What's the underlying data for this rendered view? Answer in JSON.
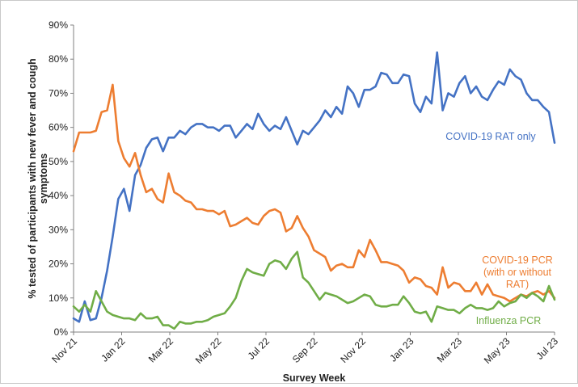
{
  "chart_data": {
    "type": "line",
    "title": "",
    "xlabel": "Survey Week",
    "ylabel": "% tested of participants with new fever and cough symptoms",
    "ylim": [
      0,
      90
    ],
    "yticks": [
      "0%",
      "10%",
      "20%",
      "30%",
      "40%",
      "50%",
      "60%",
      "70%",
      "80%",
      "90%"
    ],
    "xticks": [
      "Nov 21",
      "Jan 22",
      "Mar 22",
      "May 22",
      "Jul 22",
      "Sep 22",
      "Nov 22",
      "Jan 23",
      "Mar 23",
      "May 23",
      "Jul 23"
    ],
    "grid": false,
    "legend": "inline labels at right",
    "series": [
      {
        "name": "COVID-19 RAT only",
        "color": "#4472C4",
        "values": [
          4,
          3,
          9,
          3.5,
          4,
          10,
          18,
          28,
          39,
          42,
          35.5,
          46,
          49,
          54,
          56.5,
          57,
          53,
          57,
          57,
          59,
          58,
          60,
          61,
          61,
          60,
          60,
          59,
          60.5,
          60.5,
          57,
          59,
          61,
          59.5,
          64,
          61,
          59,
          60.5,
          59.5,
          63,
          59,
          55,
          59,
          58,
          60,
          62,
          65,
          63,
          66,
          64,
          72,
          70,
          66,
          71,
          71,
          72,
          76,
          75.5,
          73,
          73,
          75.5,
          75,
          67,
          64.5,
          69,
          67,
          82,
          65,
          70,
          69,
          73,
          75,
          70,
          72,
          69,
          68,
          71,
          73.5,
          72.5,
          77,
          75,
          74,
          70,
          68,
          68,
          66,
          64.5,
          55.5
        ]
      },
      {
        "name": "COVID-19 PCR (with or without RAT)",
        "color": "#ED7D31",
        "values": [
          53,
          58.5,
          58.5,
          58.5,
          59,
          64.5,
          65,
          72.5,
          56,
          51,
          48.5,
          52.5,
          46,
          41,
          42,
          39,
          38,
          46.5,
          41,
          40,
          38.5,
          38,
          36,
          36,
          35.5,
          35.5,
          34.5,
          35.5,
          31,
          31.5,
          32.5,
          33.5,
          32,
          31.5,
          34,
          35.5,
          36,
          35,
          29.5,
          30.5,
          34,
          30.5,
          28,
          24,
          23,
          22,
          18,
          19.5,
          20,
          19,
          19,
          24,
          22,
          27,
          24,
          20.5,
          20.5,
          20,
          19.5,
          18,
          14.5,
          16,
          15.5,
          13.5,
          13,
          11,
          19,
          13,
          14.5,
          14,
          12,
          12,
          14.5,
          11,
          14,
          11,
          10.5,
          10,
          9,
          10,
          11,
          10.5,
          11.5,
          12,
          11,
          12,
          10
        ]
      },
      {
        "name": "Influenza PCR",
        "color": "#70AD47",
        "values": [
          7.5,
          6,
          8,
          6,
          12,
          9,
          6,
          5,
          4.5,
          4,
          4,
          3.5,
          5.5,
          4,
          4,
          4.5,
          2,
          2,
          1,
          3,
          2.5,
          2.5,
          3,
          3,
          3.5,
          4.5,
          5,
          5.5,
          7.5,
          10,
          15,
          18.5,
          17.5,
          17,
          16.5,
          20,
          21,
          20.5,
          18.5,
          21.5,
          23.5,
          16,
          14.5,
          12,
          9.5,
          11.5,
          11,
          10.5,
          9.5,
          8.5,
          9,
          10,
          11,
          10.5,
          8,
          7.5,
          7.5,
          8,
          8,
          10.5,
          8.5,
          6,
          5.5,
          6,
          3,
          7.5,
          7,
          6.5,
          6.5,
          5.5,
          7,
          8,
          7,
          7,
          6.5,
          7,
          9,
          7.5,
          8.5,
          9,
          11,
          10,
          11.5,
          10.5,
          9,
          13.5,
          9.5
        ]
      }
    ]
  }
}
